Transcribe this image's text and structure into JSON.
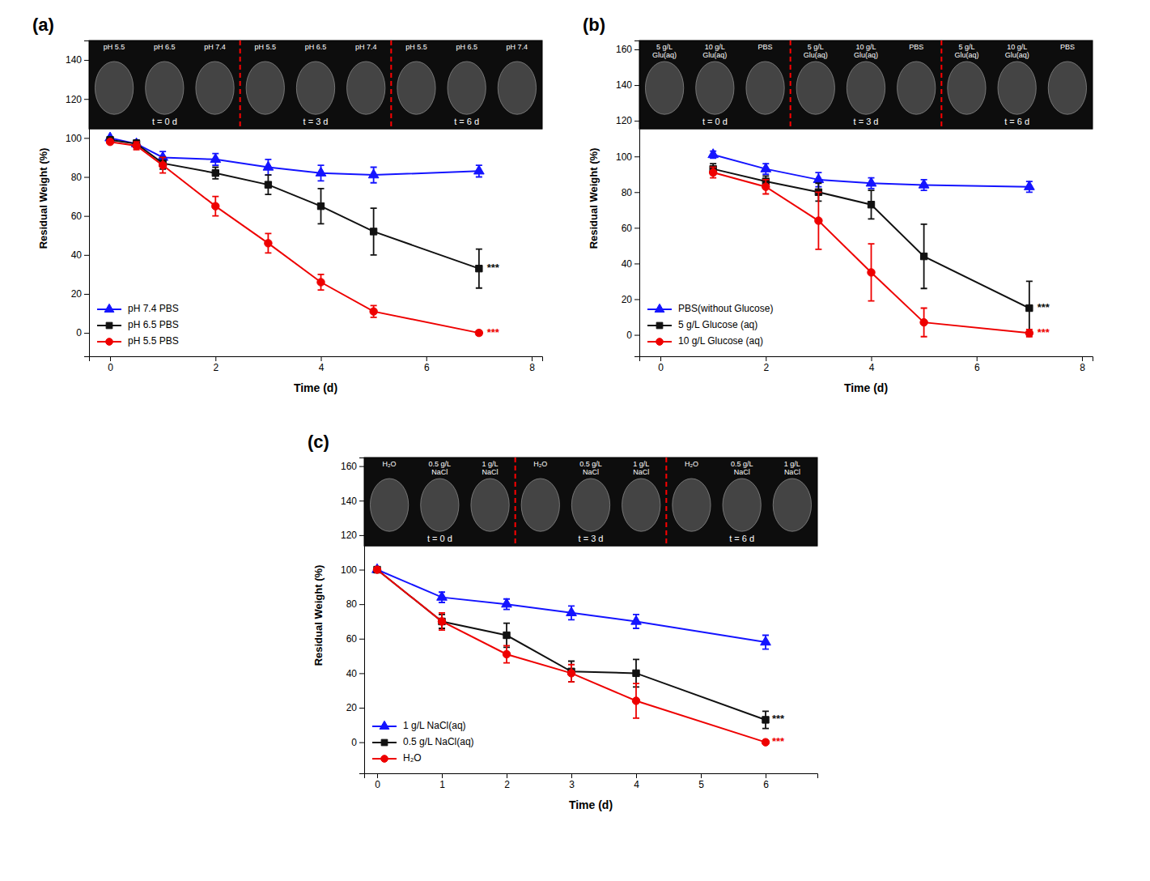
{
  "chart_data": [
    {
      "type": "line",
      "title": "(a)",
      "x_label": "Time (d)",
      "y_label": "Residual Weight (%)",
      "xlim": [
        -0.4,
        8.2
      ],
      "ylim": [
        -12,
        150
      ],
      "xticks": [
        0,
        2,
        4,
        6,
        8
      ],
      "yticks": [
        0,
        20,
        40,
        60,
        80,
        100,
        120,
        140
      ],
      "x": [
        0,
        0.5,
        1,
        2,
        3,
        4,
        5,
        7
      ],
      "series": [
        {
          "name": "pH 7.4 PBS",
          "color": "#1414FF",
          "marker": "triangle",
          "values": [
            100,
            97,
            90,
            89,
            85,
            82,
            81,
            83
          ],
          "errors": [
            0,
            2,
            3,
            3,
            4,
            4,
            4,
            3
          ]
        },
        {
          "name": "pH 6.5 PBS",
          "color": "#111111",
          "marker": "square",
          "values": [
            99,
            97,
            87,
            82,
            76,
            65,
            52,
            33
          ],
          "errors": [
            0,
            2,
            3,
            3,
            5,
            9,
            12,
            10
          ]
        },
        {
          "name": "pH 5.5 PBS",
          "color": "#EE0000",
          "marker": "circle",
          "values": [
            98,
            96,
            86,
            65,
            46,
            26,
            11,
            0
          ],
          "errors": [
            0,
            2,
            4,
            5,
            5,
            4,
            3,
            1
          ]
        }
      ],
      "annotations": [
        {
          "text": "***",
          "x": 7.15,
          "y": 33,
          "color": "#111111"
        },
        {
          "text": "***",
          "x": 7.15,
          "y": 0,
          "color": "#EE0000"
        }
      ],
      "image_column_labels": [
        "pH 5.5",
        "pH 6.5",
        "pH 7.4",
        "pH 5.5",
        "pH 6.5",
        "pH 7.4",
        "pH 5.5",
        "pH 6.5",
        "pH 7.4"
      ],
      "image_time_labels": [
        "t = 0 d",
        "t = 3 d",
        "t = 6 d"
      ],
      "legend": "lower left"
    },
    {
      "type": "line",
      "title": "(b)",
      "x_label": "Time (d)",
      "y_label": "Residual Weight (%)",
      "xlim": [
        -0.4,
        8.2
      ],
      "ylim": [
        -12,
        165
      ],
      "xticks": [
        0,
        2,
        4,
        6,
        8
      ],
      "yticks": [
        0,
        20,
        40,
        60,
        80,
        100,
        120,
        140,
        160
      ],
      "x": [
        1,
        2,
        3,
        4,
        5,
        7
      ],
      "series": [
        {
          "name": "PBS(without Glucose)",
          "color": "#1414FF",
          "marker": "triangle",
          "values": [
            101,
            93,
            87,
            85,
            84,
            83
          ],
          "errors": [
            2,
            3,
            4,
            3,
            3,
            3
          ]
        },
        {
          "name": "5 g/L Glucose (aq)",
          "color": "#111111",
          "marker": "square",
          "values": [
            93,
            86,
            80,
            73,
            44,
            15
          ],
          "errors": [
            3,
            3,
            5,
            8,
            18,
            15
          ]
        },
        {
          "name": "10 g/L Glucose (aq)",
          "color": "#EE0000",
          "marker": "circle",
          "values": [
            91,
            83,
            64,
            35,
            7,
            1
          ],
          "errors": [
            3,
            4,
            16,
            16,
            8,
            2
          ]
        }
      ],
      "annotations": [
        {
          "text": "***",
          "x": 7.15,
          "y": 15,
          "color": "#111111"
        },
        {
          "text": "***",
          "x": 7.15,
          "y": 1,
          "color": "#EE0000"
        }
      ],
      "image_column_labels": [
        "5 g/L\nGlu(aq)",
        "10 g/L\nGlu(aq)",
        "PBS",
        "5 g/L\nGlu(aq)",
        "10 g/L\nGlu(aq)",
        "PBS",
        "5 g/L\nGlu(aq)",
        "10 g/L\nGlu(aq)",
        "PBS"
      ],
      "image_time_labels": [
        "t = 0 d",
        "t = 3 d",
        "t = 6 d"
      ],
      "legend": "lower left"
    },
    {
      "type": "line",
      "title": "(c)",
      "x_label": "Time (d)",
      "y_label": "Residual Weight (%)",
      "xlim": [
        -0.2,
        6.8
      ],
      "ylim": [
        -18,
        165
      ],
      "xticks": [
        0,
        1,
        2,
        3,
        4,
        5,
        6
      ],
      "yticks": [
        0,
        20,
        40,
        60,
        80,
        100,
        120,
        140,
        160
      ],
      "x": [
        0,
        1,
        2,
        3,
        4,
        6
      ],
      "series": [
        {
          "name": "1 g/L NaCl(aq)",
          "color": "#1414FF",
          "marker": "triangle",
          "values": [
            100,
            84,
            80,
            75,
            70,
            58
          ],
          "errors": [
            0,
            3,
            3,
            4,
            4,
            4
          ]
        },
        {
          "name": "0.5 g/L NaCl(aq)",
          "color": "#111111",
          "marker": "square",
          "values": [
            100,
            70,
            62,
            41,
            40,
            13
          ],
          "errors": [
            0,
            4,
            7,
            6,
            8,
            5
          ]
        },
        {
          "name": "H₂O",
          "color": "#EE0000",
          "marker": "circle",
          "values": [
            100,
            70,
            51,
            40,
            24,
            0
          ],
          "errors": [
            0,
            5,
            5,
            5,
            10,
            1
          ]
        }
      ],
      "annotations": [
        {
          "text": "***",
          "x": 6.1,
          "y": 13,
          "color": "#111111"
        },
        {
          "text": "***",
          "x": 6.1,
          "y": 0,
          "color": "#EE0000"
        }
      ],
      "image_column_labels": [
        "H₂O",
        "0.5 g/L\nNaCl",
        "1 g/L\nNaCl",
        "H₂O",
        "0.5 g/L\nNaCl",
        "1 g/L\nNaCl",
        "H₂O",
        "0.5 g/L\nNaCl",
        "1 g/L\nNaCl"
      ],
      "image_time_labels": [
        "t = 0 d",
        "t = 3 d",
        "t = 6 d"
      ],
      "legend": "lower left"
    }
  ]
}
